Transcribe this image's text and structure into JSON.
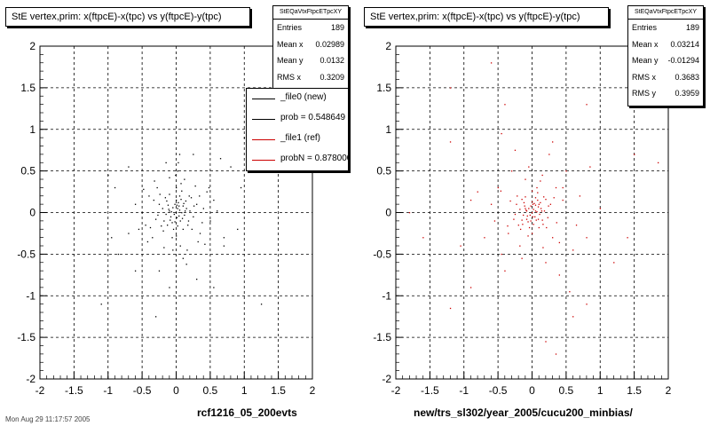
{
  "chart_data": [
    {
      "type": "scatter",
      "title": "StE  vertex,prim: x(ftpcE)-x(tpc) vs y(ftpcE)-y(tpc)",
      "xlim": [
        -2,
        2
      ],
      "ylim": [
        -2,
        2
      ],
      "x_ticks": [
        "-2",
        "-1.5",
        "-1",
        "-0.5",
        "0",
        "0.5",
        "1",
        "1.5",
        "2"
      ],
      "y_ticks": [
        "2",
        "1.5",
        "1",
        "0.5",
        "0",
        "-0.5",
        "-1",
        "-1.5",
        "-2"
      ],
      "grid": true,
      "marker_color": "#000000",
      "stats": {
        "name": "StEQaVtxFtpcETpcXY",
        "rows": [
          {
            "label": "Entries",
            "value": "189"
          },
          {
            "label": "Mean x",
            "value": "0.02989"
          },
          {
            "label": "Mean y",
            "value": "0.0132"
          },
          {
            "label": "RMS x",
            "value": "0.3209"
          }
        ]
      },
      "legend": [
        {
          "label": "_file0 (new)",
          "color": "#000000"
        },
        {
          "label": "prob = 0.548649",
          "color": "#000000"
        },
        {
          "label": "_file1 (ref)",
          "color": "#cc0000"
        },
        {
          "label": "probN = 0.878000",
          "color": "#cc0000"
        }
      ],
      "legend_position": "top-right",
      "footer": "rcf1216_05_200evts",
      "footer_small": "Mon Aug 29 11:17:57 2005",
      "points": [
        [
          0,
          0
        ],
        [
          0.02,
          0.05
        ],
        [
          -0.03,
          -0.02
        ],
        [
          0.05,
          0.03
        ],
        [
          -0.05,
          0.06
        ],
        [
          0.01,
          -0.06
        ],
        [
          0.04,
          -0.04
        ],
        [
          -0.02,
          0.1
        ],
        [
          0.08,
          0.0
        ],
        [
          -0.08,
          -0.05
        ],
        [
          0.1,
          0.08
        ],
        [
          -0.1,
          0.02
        ],
        [
          0.03,
          0.12
        ],
        [
          0.06,
          -0.1
        ],
        [
          -0.06,
          -0.12
        ],
        [
          0.12,
          -0.03
        ],
        [
          -0.12,
          0.09
        ],
        [
          0.0,
          0.15
        ],
        [
          0.15,
          0.05
        ],
        [
          -0.15,
          -0.02
        ],
        [
          0.02,
          -0.16
        ],
        [
          0.14,
          0.14
        ],
        [
          -0.14,
          0.14
        ],
        [
          0.18,
          -0.1
        ],
        [
          -0.18,
          -0.1
        ],
        [
          0.05,
          0.2
        ],
        [
          -0.04,
          -0.2
        ],
        [
          0.2,
          0.02
        ],
        [
          -0.2,
          0.05
        ],
        [
          0.1,
          -0.2
        ],
        [
          -0.1,
          0.22
        ],
        [
          0.22,
          0.18
        ],
        [
          -0.22,
          -0.16
        ],
        [
          0.25,
          -0.05
        ],
        [
          -0.25,
          0.1
        ],
        [
          0.0,
          0.3
        ],
        [
          0.0,
          -0.28
        ],
        [
          0.3,
          0.1
        ],
        [
          -0.3,
          -0.08
        ],
        [
          0.07,
          0.35
        ],
        [
          0.02,
          0.5
        ],
        [
          0.03,
          0.6
        ],
        [
          0.05,
          0.7
        ],
        [
          -0.01,
          0.45
        ],
        [
          0.06,
          -0.4
        ],
        [
          -0.05,
          -0.45
        ],
        [
          0.1,
          -0.55
        ],
        [
          0.4,
          0.05
        ],
        [
          -0.4,
          0.2
        ],
        [
          0.35,
          -0.25
        ],
        [
          -0.35,
          -0.3
        ],
        [
          0.45,
          0.25
        ],
        [
          -0.45,
          -0.15
        ],
        [
          0.28,
          0.32
        ],
        [
          -0.28,
          0.3
        ],
        [
          0.32,
          -0.35
        ],
        [
          -0.32,
          0.38
        ],
        [
          0.5,
          -0.1
        ],
        [
          -0.5,
          0.0
        ],
        [
          0.55,
          0.15
        ],
        [
          -0.55,
          -0.2
        ],
        [
          0.6,
          0.02
        ],
        [
          -0.6,
          0.1
        ],
        [
          0.15,
          -0.62
        ],
        [
          -0.15,
          0.6
        ],
        [
          0.7,
          -0.3
        ],
        [
          -0.7,
          -0.25
        ],
        [
          0.04,
          0.08
        ],
        [
          -0.07,
          0.01
        ],
        [
          0.09,
          -0.07
        ],
        [
          0.11,
          0.11
        ],
        [
          -0.09,
          -0.09
        ],
        [
          0.13,
          0.02
        ],
        [
          -0.11,
          0.04
        ],
        [
          0.01,
          0.09
        ],
        [
          -0.02,
          -0.11
        ],
        [
          0.07,
          0.16
        ],
        [
          -0.13,
          -0.15
        ],
        [
          0.17,
          -0.15
        ],
        [
          -0.16,
          0.18
        ],
        [
          0.19,
          0.2
        ],
        [
          -0.19,
          -0.22
        ],
        [
          0.23,
          -0.2
        ],
        [
          -0.24,
          0.22
        ],
        [
          0.26,
          0.08
        ],
        [
          -0.27,
          -0.03
        ],
        [
          0.08,
          0.26
        ],
        [
          -0.06,
          -0.3
        ],
        [
          0.34,
          0.2
        ],
        [
          -0.33,
          0.15
        ],
        [
          0.38,
          -0.12
        ],
        [
          -0.38,
          -0.18
        ],
        [
          0.12,
          0.4
        ],
        [
          -0.1,
          0.42
        ],
        [
          0.16,
          -0.45
        ],
        [
          -0.18,
          -0.42
        ],
        [
          0.48,
          0.3
        ],
        [
          -0.48,
          0.28
        ],
        [
          0.42,
          -0.38
        ],
        [
          -0.42,
          -0.35
        ],
        [
          1.0,
          0.9
        ],
        [
          -1.0,
          0.45
        ],
        [
          -0.9,
          0.3
        ],
        [
          0.55,
          -0.9
        ],
        [
          -0.3,
          -1.25
        ],
        [
          1.25,
          -1.1
        ],
        [
          -1.1,
          -1.1
        ],
        [
          0.7,
          -0.4
        ],
        [
          -0.85,
          -0.5
        ],
        [
          0.3,
          -0.8
        ],
        [
          -0.1,
          -0.9
        ],
        [
          0.8,
          0.55
        ],
        [
          0.9,
          -0.2
        ],
        [
          -0.95,
          -0.3
        ],
        [
          0.95,
          0.3
        ],
        [
          -0.7,
          0.55
        ],
        [
          0.65,
          0.65
        ],
        [
          -0.6,
          -0.7
        ],
        [
          0.25,
          0.7
        ],
        [
          -0.25,
          -0.7
        ]
      ]
    },
    {
      "type": "scatter",
      "title": "StE  vertex,prim: x(ftpcE)-x(tpc) vs y(ftpcE)-y(tpc)",
      "xlim": [
        -2,
        2
      ],
      "ylim": [
        -2,
        2
      ],
      "x_ticks": [
        "-2",
        "-1.5",
        "-1",
        "-0.5",
        "0",
        "0.5",
        "1",
        "1.5",
        "2"
      ],
      "y_ticks": [
        "2",
        "1.5",
        "1",
        "0.5",
        "0",
        "-0.5",
        "-1",
        "-1.5",
        "-2"
      ],
      "grid": true,
      "marker_color": "#cc0000",
      "stats": {
        "name": "StEQaVtxFtpcETpcXY",
        "rows": [
          {
            "label": "Entries",
            "value": "189"
          },
          {
            "label": "Mean x",
            "value": "0.03214"
          },
          {
            "label": "Mean y",
            "value": "-0.01294"
          },
          {
            "label": "RMS x",
            "value": "0.3683"
          },
          {
            "label": "RMS y",
            "value": "0.3959"
          }
        ]
      },
      "footer": "new/trs_sl302/year_2005/cucu200_minbias/",
      "points": [
        [
          0,
          0
        ],
        [
          0.02,
          0.04
        ],
        [
          -0.03,
          -0.03
        ],
        [
          0.05,
          0.02
        ],
        [
          -0.05,
          0.05
        ],
        [
          0.01,
          -0.05
        ],
        [
          0.04,
          -0.05
        ],
        [
          -0.02,
          0.08
        ],
        [
          0.07,
          0.01
        ],
        [
          -0.07,
          -0.04
        ],
        [
          0.09,
          0.07
        ],
        [
          -0.09,
          0.03
        ],
        [
          0.03,
          0.11
        ],
        [
          0.06,
          -0.09
        ],
        [
          -0.06,
          -0.11
        ],
        [
          0.11,
          -0.02
        ],
        [
          -0.11,
          0.08
        ],
        [
          0.0,
          0.13
        ],
        [
          0.13,
          0.05
        ],
        [
          -0.13,
          -0.03
        ],
        [
          0.02,
          -0.14
        ],
        [
          0.12,
          0.12
        ],
        [
          -0.12,
          0.12
        ],
        [
          0.15,
          -0.09
        ],
        [
          -0.15,
          -0.09
        ],
        [
          0.05,
          0.18
        ],
        [
          -0.04,
          -0.18
        ],
        [
          0.18,
          0.02
        ],
        [
          -0.18,
          0.04
        ],
        [
          0.1,
          -0.18
        ],
        [
          -0.1,
          0.19
        ],
        [
          0.2,
          0.16
        ],
        [
          -0.2,
          -0.15
        ],
        [
          0.23,
          -0.06
        ],
        [
          -0.23,
          0.1
        ],
        [
          0.0,
          0.26
        ],
        [
          0.0,
          -0.25
        ],
        [
          0.27,
          0.1
        ],
        [
          -0.27,
          -0.08
        ],
        [
          0.07,
          0.3
        ],
        [
          -0.5,
          0.3
        ],
        [
          -0.6,
          0.1
        ],
        [
          -0.8,
          0.25
        ],
        [
          0.5,
          0.5
        ],
        [
          0.35,
          0.3
        ],
        [
          -0.3,
          0.5
        ],
        [
          -0.45,
          -0.5
        ],
        [
          0.6,
          -0.45
        ],
        [
          0.2,
          -0.6
        ],
        [
          -0.15,
          -0.55
        ],
        [
          0.45,
          0.15
        ],
        [
          -0.55,
          -0.1
        ],
        [
          0.3,
          -0.3
        ],
        [
          -0.35,
          -0.25
        ],
        [
          0.15,
          0.45
        ],
        [
          -0.05,
          0.55
        ],
        [
          0.7,
          0.2
        ],
        [
          -0.7,
          -0.3
        ],
        [
          0.65,
          -0.15
        ],
        [
          0.25,
          0.7
        ],
        [
          -0.25,
          0.75
        ],
        [
          0.4,
          -0.75
        ],
        [
          -0.4,
          -0.7
        ],
        [
          0.8,
          -0.3
        ],
        [
          -0.9,
          0.15
        ],
        [
          0.85,
          0.55
        ],
        [
          0.3,
          0.85
        ],
        [
          -0.45,
          0.95
        ],
        [
          0.55,
          -0.95
        ],
        [
          -1.05,
          -0.4
        ],
        [
          1.0,
          0.05
        ],
        [
          -1.2,
          0.85
        ],
        [
          -1.2,
          1.5
        ],
        [
          -0.6,
          1.8
        ],
        [
          -0.4,
          1.3
        ],
        [
          0.8,
          1.3
        ],
        [
          1.5,
          0.7
        ],
        [
          1.85,
          0.6
        ],
        [
          0.6,
          -1.25
        ],
        [
          0.8,
          -1.1
        ],
        [
          0.2,
          -1.55
        ],
        [
          0.35,
          -1.7
        ],
        [
          -1.2,
          -1.15
        ],
        [
          -1.6,
          -0.3
        ],
        [
          -1.8,
          0.0
        ],
        [
          1.2,
          -0.6
        ],
        [
          -0.9,
          -0.9
        ],
        [
          1.4,
          -0.3
        ],
        [
          0.05,
          0.09
        ],
        [
          -0.08,
          0.02
        ],
        [
          0.09,
          -0.08
        ],
        [
          0.1,
          0.1
        ],
        [
          -0.08,
          -0.08
        ],
        [
          0.14,
          0.02
        ],
        [
          -0.1,
          0.05
        ],
        [
          0.01,
          0.1
        ],
        [
          -0.02,
          -0.1
        ],
        [
          0.08,
          0.15
        ],
        [
          -0.14,
          -0.14
        ],
        [
          0.16,
          -0.14
        ],
        [
          -0.15,
          0.16
        ],
        [
          0.17,
          0.19
        ],
        [
          -0.17,
          -0.2
        ],
        [
          0.21,
          -0.18
        ],
        [
          -0.22,
          0.2
        ],
        [
          0.24,
          0.08
        ],
        [
          -0.25,
          -0.02
        ],
        [
          0.08,
          0.24
        ],
        [
          -0.06,
          -0.28
        ],
        [
          0.32,
          0.18
        ],
        [
          -0.32,
          0.14
        ],
        [
          0.36,
          -0.12
        ],
        [
          -0.36,
          -0.16
        ],
        [
          0.12,
          0.38
        ],
        [
          -0.1,
          0.4
        ],
        [
          0.16,
          -0.42
        ],
        [
          -0.18,
          -0.4
        ],
        [
          0.45,
          0.3
        ],
        [
          -0.46,
          0.26
        ],
        [
          0.4,
          -0.36
        ]
      ]
    }
  ]
}
